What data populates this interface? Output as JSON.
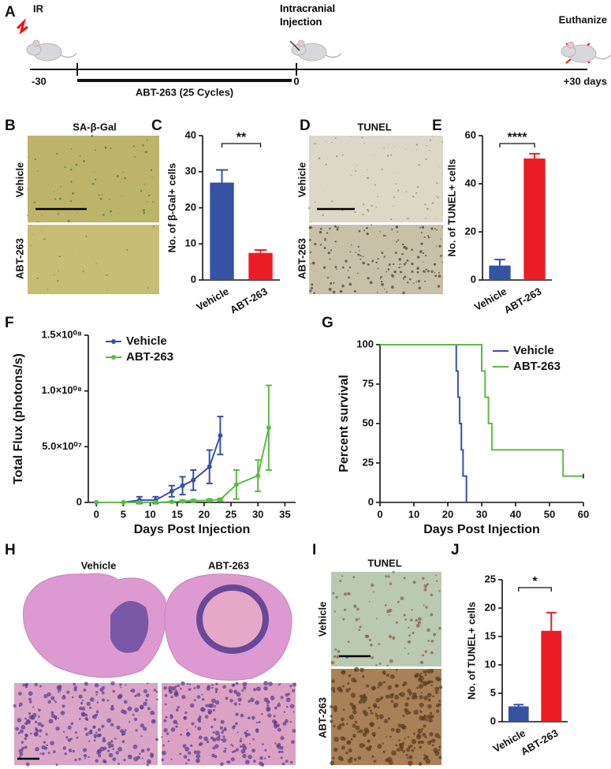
{
  "timeline": {
    "panel": "A",
    "ir": "IR",
    "start": "-30",
    "treatment": "ABT-263 (25 Cycles)",
    "injection": "Intracranial Injection",
    "zero": "0",
    "end_event": "Euthanize",
    "end": "+30 days"
  },
  "images": {
    "b": {
      "panel": "B",
      "title": "SA-β-Gal",
      "rows": [
        "Vehicle",
        "ABT-263"
      ]
    },
    "d": {
      "panel": "D",
      "title": "TUNEL",
      "rows": [
        "Vehicle",
        "ABT-263"
      ]
    },
    "h": {
      "panel": "H",
      "columns": [
        "Vehicle",
        "ABT-263"
      ]
    },
    "i": {
      "panel": "I",
      "title": "TUNEL",
      "rows": [
        "Vehicle",
        "ABT-263"
      ]
    }
  },
  "chart_data": [
    {
      "type": "bar",
      "panel": "C",
      "y_label": "No. of β-Gal+ cells",
      "categories": [
        "Vehicle",
        "ABT-263"
      ],
      "values": [
        27,
        7.5
      ],
      "errors": [
        3.5,
        0.8
      ],
      "colors": [
        "#3652a3",
        "#ec1c24"
      ],
      "ylim": [
        0,
        40
      ],
      "yticks": [
        0,
        10,
        20,
        30,
        40
      ],
      "annotation": "**"
    },
    {
      "type": "bar",
      "panel": "E",
      "y_label": "No. of TUNEL+ cells",
      "categories": [
        "Vehicle",
        "ABT-263"
      ],
      "values": [
        6,
        50.5
      ],
      "errors": [
        2.5,
        2
      ],
      "colors": [
        "#3652a3",
        "#ec1c24"
      ],
      "ylim": [
        0,
        60
      ],
      "yticks": [
        0,
        20,
        40,
        60
      ],
      "annotation": "****"
    },
    {
      "type": "line",
      "panel": "F",
      "x_label": "Days Post Injection",
      "y_label": "Total Flux (photons/s)",
      "xlim": [
        -1.5,
        37
      ],
      "xticks": [
        0,
        5,
        10,
        15,
        20,
        25,
        30,
        35
      ],
      "ylim": [
        0,
        150000000
      ],
      "yticks": [
        0,
        {
          "value": 50000000,
          "label": "5.0×10⁰⁷"
        },
        {
          "value": 100000000,
          "label": "1.0×10⁰⁸"
        },
        {
          "value": 150000000,
          "label": "1.5×10⁰⁸"
        }
      ],
      "legend": "upper-left",
      "series": [
        {
          "name": "Vehicle",
          "color": "#3652a3",
          "x": [
            0,
            5,
            8,
            11,
            14,
            16,
            18,
            21,
            23
          ],
          "values": [
            0,
            0,
            2000000,
            2000000,
            10000000,
            15000000,
            20000000,
            32000000,
            60000000
          ],
          "errors": [
            0,
            0,
            3000000,
            3000000,
            5000000,
            8000000,
            9000000,
            15000000,
            17000000
          ]
        },
        {
          "name": "ABT-263",
          "color": "#5cbb46",
          "x": [
            0,
            5,
            8,
            11,
            14,
            16,
            18,
            21,
            23,
            26,
            30,
            32
          ],
          "values": [
            0,
            0,
            0,
            0,
            500000,
            1000000,
            1500000,
            2000000,
            2500000,
            16000000,
            24000000,
            67000000
          ],
          "errors": [
            0,
            0,
            0,
            0,
            500000,
            1000000,
            1000000,
            1000000,
            1000000,
            13000000,
            14000000,
            38000000
          ]
        }
      ]
    },
    {
      "type": "step",
      "panel": "G",
      "x_label": "Days Post Injection",
      "y_label": "Percent survival",
      "xlim": [
        0,
        60
      ],
      "xticks": [
        0,
        10,
        20,
        30,
        40,
        50,
        60
      ],
      "ylim": [
        0,
        100
      ],
      "yticks": [
        0,
        25,
        50,
        75,
        100
      ],
      "legend": "upper-right",
      "series": [
        {
          "name": "Vehicle",
          "color": "#3652a3",
          "x": [
            0,
            22.5,
            23,
            23.5,
            24,
            24.5,
            25.5
          ],
          "values": [
            100,
            83.3,
            66.7,
            50,
            33.3,
            16.7,
            0
          ]
        },
        {
          "name": "ABT-263",
          "color": "#5cbb46",
          "x": [
            0,
            30,
            31,
            32,
            33,
            54,
            60
          ],
          "values": [
            100,
            83.3,
            66.7,
            50,
            33.3,
            16.7,
            16.7
          ]
        }
      ]
    },
    {
      "type": "bar",
      "panel": "J",
      "y_label": "No. of TUNEL+ cells",
      "categories": [
        "Vehicle",
        "ABT-263"
      ],
      "values": [
        2.7,
        16
      ],
      "errors": [
        0.3,
        3.2
      ],
      "colors": [
        "#3652a3",
        "#ec1c24"
      ],
      "ylim": [
        0,
        25
      ],
      "yticks": [
        0,
        5,
        10,
        15,
        20,
        25
      ],
      "annotation": "*"
    }
  ]
}
